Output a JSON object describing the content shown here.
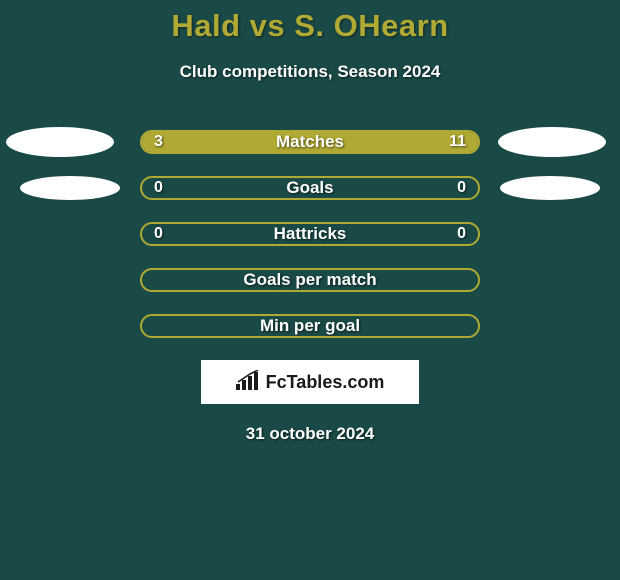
{
  "header": {
    "title": "Hald vs S. OHearn",
    "subtitle": "Club competitions, Season 2024",
    "title_color": "#b0a933",
    "subtitle_color": "#ffffff"
  },
  "theme": {
    "background": "#1a4a47",
    "accent": "#b0a933",
    "text": "#ffffff",
    "ellipse_bg": "#ffffff",
    "logo_bg": "#ffffff"
  },
  "rows": [
    {
      "label": "Matches",
      "left_val": "3",
      "right_val": "11",
      "left_pct": 21,
      "right_pct": 79,
      "show_left_ellipse": true,
      "show_right_ellipse": true,
      "ellipse_size": "wide"
    },
    {
      "label": "Goals",
      "left_val": "0",
      "right_val": "0",
      "left_pct": 0,
      "right_pct": 0,
      "show_left_ellipse": true,
      "show_right_ellipse": true,
      "ellipse_size": "narrow"
    },
    {
      "label": "Hattricks",
      "left_val": "0",
      "right_val": "0",
      "left_pct": 0,
      "right_pct": 0,
      "show_left_ellipse": false,
      "show_right_ellipse": false
    },
    {
      "label": "Goals per match",
      "left_val": "",
      "right_val": "",
      "left_pct": 0,
      "right_pct": 0,
      "show_left_ellipse": false,
      "show_right_ellipse": false
    },
    {
      "label": "Min per goal",
      "left_val": "",
      "right_val": "",
      "left_pct": 0,
      "right_pct": 0,
      "show_left_ellipse": false,
      "show_right_ellipse": false
    }
  ],
  "logo": {
    "text": "FcTables.com",
    "icon_name": "bar-chart-icon"
  },
  "footer": {
    "date": "31 october 2024"
  }
}
